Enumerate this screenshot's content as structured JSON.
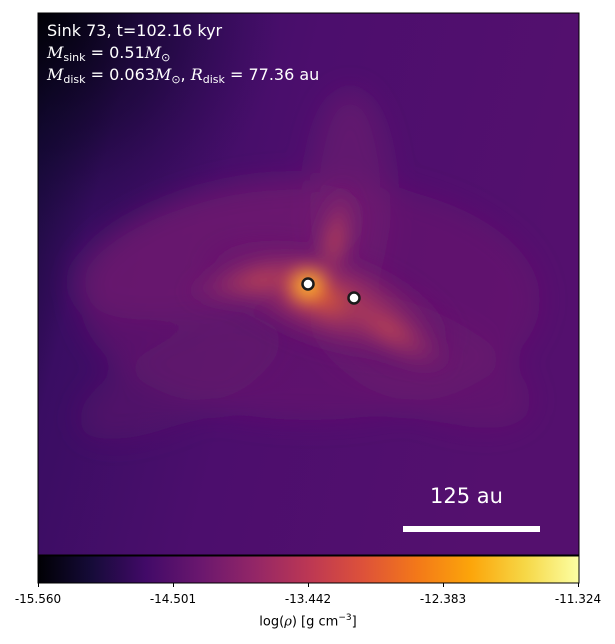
{
  "annotations": {
    "title": "Sink 73, t=102.16 kyr",
    "m_sink_value": "= 0.51",
    "m_disk_value": "= 0.063",
    "r_disk_value": "= 77.36 au",
    "scale_bar_label": "125 au"
  },
  "colorbar": {
    "ticks": [
      "-15.560",
      "-14.501",
      "-13.442",
      "-12.383",
      "-11.324"
    ],
    "label_prefix": "log(",
    "label_rho": "ρ",
    "label_mid": ") [g cm",
    "label_exp": "−3",
    "label_suffix": "]",
    "colormap": "inferno"
  },
  "chart_data": {
    "type": "heatmap",
    "title": "Sink 73, t=102.16 kyr",
    "quantity": "log(ρ) [g cm^-3]",
    "vmin": -15.56,
    "vmax": -11.324,
    "colormap": "inferno",
    "sinks": [
      {
        "id": "primary",
        "highlighted": true
      },
      {
        "id": "secondary",
        "highlighted": false
      }
    ],
    "scale_bar": "125 au"
  }
}
